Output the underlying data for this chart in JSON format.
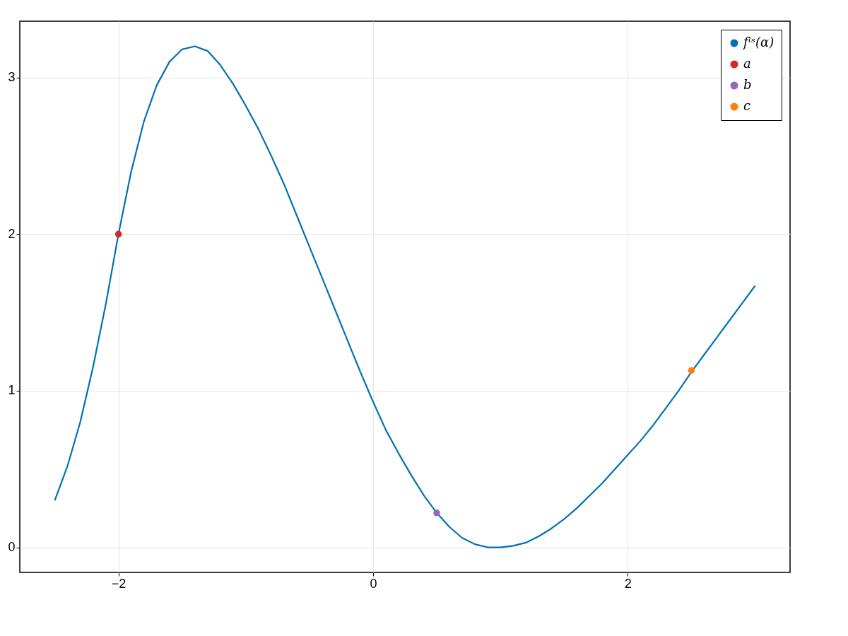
{
  "chart_data": {
    "type": "line",
    "xlim": [
      -2.775,
      3.275
    ],
    "ylim": [
      -0.16,
      3.36
    ],
    "xticks": [
      -2,
      0,
      2
    ],
    "yticks": [
      0,
      1,
      2,
      3
    ],
    "grid": true,
    "legend": "top right",
    "series": [
      {
        "name": "fˡˢ(α)",
        "color": "#0072b2",
        "marker": "none",
        "line_style": "solid",
        "x": [
          -2.5,
          -2.4,
          -2.3,
          -2.2,
          -2.1,
          -2.0,
          -1.9,
          -1.8,
          -1.7,
          -1.6,
          -1.5,
          -1.4,
          -1.3,
          -1.2,
          -1.1,
          -1.0,
          -0.9,
          -0.8,
          -0.7,
          -0.6,
          -0.5,
          -0.4,
          -0.3,
          -0.2,
          -0.1,
          0.0,
          0.1,
          0.2,
          0.3,
          0.4,
          0.5,
          0.6,
          0.7,
          0.8,
          0.9,
          1.0,
          1.1,
          1.2,
          1.3,
          1.4,
          1.5,
          1.6,
          1.7,
          1.8,
          1.9,
          2.0,
          2.1,
          2.2,
          2.3,
          2.4,
          2.5,
          2.6,
          2.7,
          2.8,
          2.9,
          3.0
        ],
        "values": [
          0.3,
          0.52,
          0.8,
          1.15,
          1.55,
          2.0,
          2.4,
          2.72,
          2.95,
          3.1,
          3.18,
          3.2,
          3.17,
          3.08,
          2.96,
          2.82,
          2.67,
          2.5,
          2.32,
          2.12,
          1.92,
          1.72,
          1.52,
          1.32,
          1.12,
          0.93,
          0.75,
          0.6,
          0.46,
          0.33,
          0.22,
          0.13,
          0.06,
          0.02,
          0.0,
          0.0,
          0.01,
          0.03,
          0.07,
          0.12,
          0.18,
          0.25,
          0.33,
          0.41,
          0.5,
          0.59,
          0.68,
          0.78,
          0.89,
          1.0,
          1.12,
          1.23,
          1.34,
          1.45,
          1.56,
          1.67
        ]
      },
      {
        "name": "a",
        "type": "scatter",
        "color": "#d62728",
        "marker": "circle",
        "x": [
          -2.0
        ],
        "values": [
          2.0
        ]
      },
      {
        "name": "b",
        "type": "scatter",
        "color": "#9467bd",
        "marker": "circle",
        "x": [
          0.5
        ],
        "values": [
          0.22
        ]
      },
      {
        "name": "c",
        "type": "scatter",
        "color": "#ff7f0e",
        "marker": "circle",
        "x": [
          2.5
        ],
        "values": [
          1.13
        ]
      }
    ]
  }
}
